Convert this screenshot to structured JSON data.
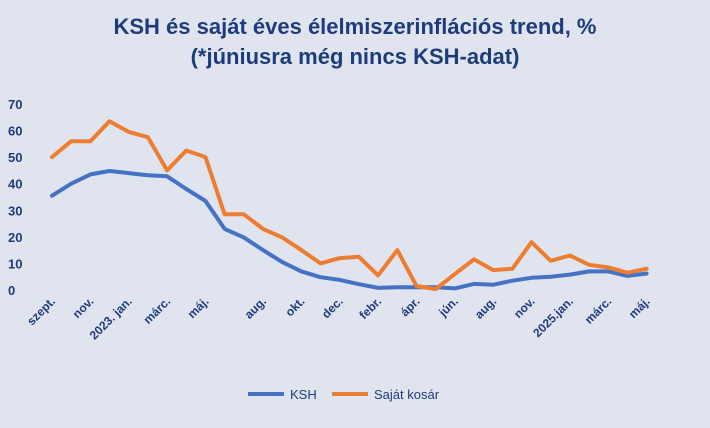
{
  "chart_data": {
    "type": "line",
    "title": "KSH és saját éves élelmiszerinflációs trend, %",
    "subtitle": "(*júniusra még nincs KSH-adat)",
    "ylim": [
      0,
      70
    ],
    "yticks": [
      0,
      10,
      20,
      30,
      40,
      50,
      60,
      70
    ],
    "grid": false,
    "legend_position": "bottom",
    "x": [
      "2022-09",
      "2022-10",
      "2022-11",
      "2022-12",
      "2023-01",
      "2023-02",
      "2023-03",
      "2023-04",
      "2023-05",
      "2023-06",
      "2023-07",
      "2023-08",
      "2023-09",
      "2023-10",
      "2023-11",
      "2023-12",
      "2024-01",
      "2024-02",
      "2024-03",
      "2024-04",
      "2024-05",
      "2024-06",
      "2024-07",
      "2024-08",
      "2024-09",
      "2024-10",
      "2024-11",
      "2024-12",
      "2025-01",
      "2025-02",
      "2025-03",
      "2025-04",
      "2025-05",
      "2025-06"
    ],
    "xtick_labels": [
      {
        "index": 0,
        "label": "szept."
      },
      {
        "index": 2,
        "label": "nov."
      },
      {
        "index": 4,
        "label": "2023. jan."
      },
      {
        "index": 6,
        "label": "márc."
      },
      {
        "index": 8,
        "label": "máj."
      },
      {
        "index": 11,
        "label": "aug."
      },
      {
        "index": 13,
        "label": "okt."
      },
      {
        "index": 15,
        "label": "dec."
      },
      {
        "index": 17,
        "label": "febr."
      },
      {
        "index": 19,
        "label": "ápr."
      },
      {
        "index": 21,
        "label": "jún."
      },
      {
        "index": 23,
        "label": "aug."
      },
      {
        "index": 25,
        "label": "nov."
      },
      {
        "index": 27,
        "label": "2025.jan."
      },
      {
        "index": 29,
        "label": "márc."
      },
      {
        "index": 31,
        "label": "máj."
      }
    ],
    "series": [
      {
        "name": "KSH",
        "color": "#4472c4",
        "values": [
          35.5,
          40,
          43.5,
          44.8,
          44,
          43.2,
          42.8,
          38,
          33.5,
          23,
          19.8,
          15,
          10.5,
          7,
          4.8,
          3.8,
          2.2,
          0.8,
          1,
          1,
          1,
          0.6,
          2.3,
          2,
          3.5,
          4.6,
          5,
          5.8,
          7,
          7,
          5.3,
          6.2,
          null,
          null
        ]
      },
      {
        "name": "Saját kosár",
        "color": "#ed7d31",
        "values": [
          50,
          56,
          56,
          63.5,
          59.5,
          57.5,
          45,
          52.5,
          50,
          28.5,
          28.5,
          23,
          19.8,
          15,
          10,
          12,
          12.5,
          5.5,
          15,
          1.5,
          0.3,
          6,
          11.5,
          7.5,
          8,
          18,
          11,
          13,
          9.5,
          8.5,
          6.5,
          8,
          null,
          null
        ]
      }
    ]
  }
}
